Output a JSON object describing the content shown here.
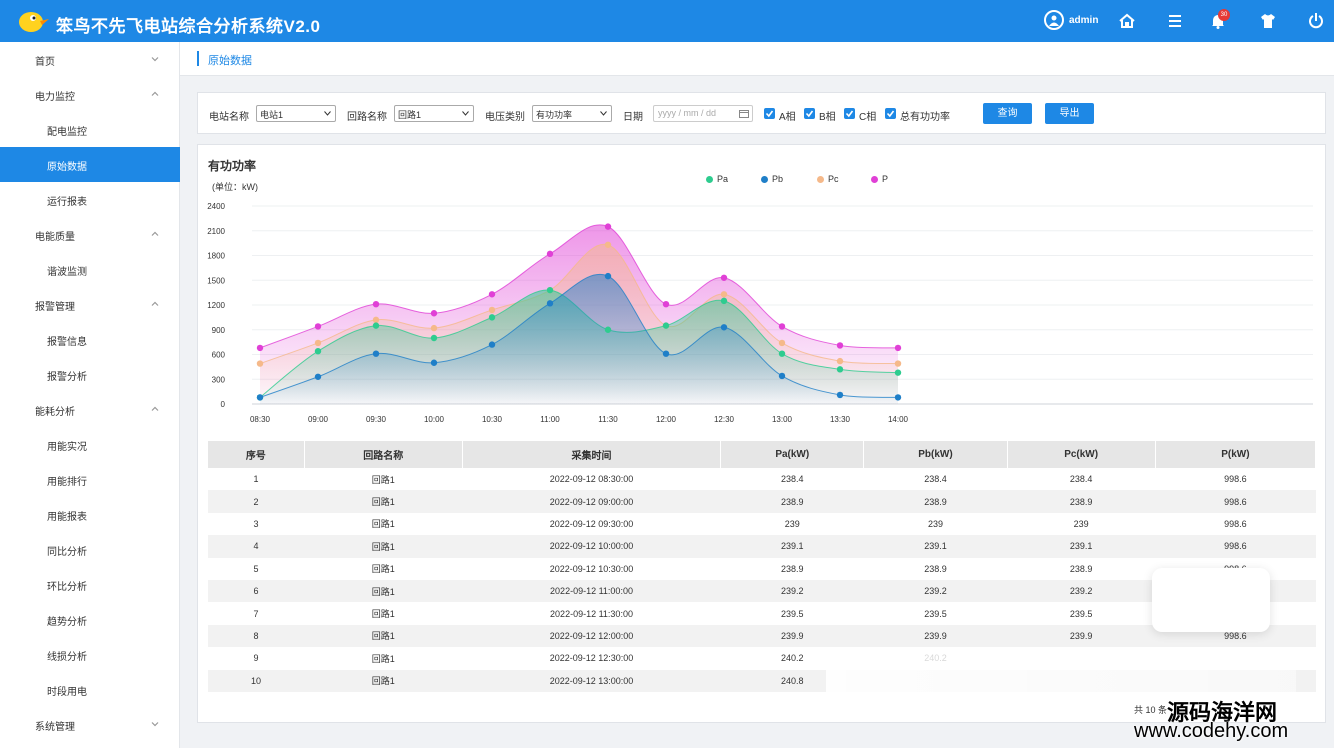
{
  "app": {
    "title": "笨鸟不先飞电站综合分析系统V2.0",
    "user": "admin",
    "notification_count": "30"
  },
  "sidebar": {
    "items": [
      {
        "label": "首页",
        "type": "group",
        "expanded": false
      },
      {
        "label": "电力监控",
        "type": "group",
        "expanded": true
      },
      {
        "label": "配电监控",
        "type": "sub"
      },
      {
        "label": "原始数据",
        "type": "sub",
        "active": true
      },
      {
        "label": "运行报表",
        "type": "sub"
      },
      {
        "label": "电能质量",
        "type": "group",
        "expanded": true
      },
      {
        "label": "谐波监测",
        "type": "sub"
      },
      {
        "label": "报警管理",
        "type": "group",
        "expanded": true
      },
      {
        "label": "报警信息",
        "type": "sub"
      },
      {
        "label": "报警分析",
        "type": "sub"
      },
      {
        "label": "能耗分析",
        "type": "group",
        "expanded": true
      },
      {
        "label": "用能实况",
        "type": "sub"
      },
      {
        "label": "用能排行",
        "type": "sub"
      },
      {
        "label": "用能报表",
        "type": "sub"
      },
      {
        "label": "同比分析",
        "type": "sub"
      },
      {
        "label": "环比分析",
        "type": "sub"
      },
      {
        "label": "趋势分析",
        "type": "sub"
      },
      {
        "label": "线损分析",
        "type": "sub"
      },
      {
        "label": "时段用电",
        "type": "sub"
      },
      {
        "label": "系统管理",
        "type": "group",
        "expanded": false
      }
    ]
  },
  "breadcrumb": {
    "title": "原始数据"
  },
  "filters": {
    "station_label": "电站名称",
    "station_value": "电站1",
    "circuit_label": "回路名称",
    "circuit_value": "回路1",
    "voltage_label": "电压类别",
    "voltage_value": "有功功率",
    "date_label": "日期",
    "date_placeholder": "yyyy / mm / dd",
    "checks": [
      {
        "label": "A相",
        "checked": true
      },
      {
        "label": "B相",
        "checked": true
      },
      {
        "label": "C相",
        "checked": true
      },
      {
        "label": "总有功功率",
        "checked": true
      }
    ],
    "query_label": "查询",
    "export_label": "导出"
  },
  "chart": {
    "title": "有功功率",
    "unit": "(单位：kW)",
    "colors": {
      "Pa": "#2ecc8f",
      "Pb": "#1f7fc8",
      "Pc": "#f5b98a",
      "P": "#e040d6"
    }
  },
  "chart_data": {
    "type": "area",
    "x": [
      "08:30",
      "09:00",
      "09:30",
      "10:00",
      "10:30",
      "11:00",
      "11:30",
      "12:00",
      "12:30",
      "13:00",
      "13:30",
      "14:00"
    ],
    "ylim": [
      0,
      2400
    ],
    "yticks": [
      0,
      300,
      600,
      900,
      1200,
      1500,
      1800,
      2100,
      2400
    ],
    "grid": true,
    "legend": "top",
    "series": [
      {
        "name": "Pa",
        "values": [
          80,
          640,
          950,
          800,
          1050,
          1380,
          900,
          950,
          1250,
          610,
          420,
          380
        ]
      },
      {
        "name": "Pb",
        "values": [
          80,
          330,
          610,
          500,
          720,
          1220,
          1550,
          610,
          930,
          340,
          110,
          80
        ]
      },
      {
        "name": "Pc",
        "values": [
          490,
          740,
          1020,
          920,
          1140,
          1380,
          1930,
          950,
          1330,
          740,
          520,
          490
        ]
      },
      {
        "name": "P",
        "values": [
          680,
          940,
          1210,
          1100,
          1330,
          1820,
          2150,
          1210,
          1530,
          940,
          710,
          680
        ]
      }
    ]
  },
  "table": {
    "headers": [
      "序号",
      "回路名称",
      "采集时间",
      "Pa(kW)",
      "Pb(kW)",
      "Pc(kW)",
      "P(kW)"
    ],
    "rows": [
      [
        "1",
        "回路1",
        "2022-09-12 08:30:00",
        "238.4",
        "238.4",
        "238.4",
        "998.6"
      ],
      [
        "2",
        "回路1",
        "2022-09-12 09:00:00",
        "238.9",
        "238.9",
        "238.9",
        "998.6"
      ],
      [
        "3",
        "回路1",
        "2022-09-12 09:30:00",
        "239",
        "239",
        "239",
        "998.6"
      ],
      [
        "4",
        "回路1",
        "2022-09-12 10:00:00",
        "239.1",
        "239.1",
        "239.1",
        "998.6"
      ],
      [
        "5",
        "回路1",
        "2022-09-12 10:30:00",
        "238.9",
        "238.9",
        "238.9",
        "998.6"
      ],
      [
        "6",
        "回路1",
        "2022-09-12 11:00:00",
        "239.2",
        "239.2",
        "239.2",
        ""
      ],
      [
        "7",
        "回路1",
        "2022-09-12 11:30:00",
        "239.5",
        "239.5",
        "239.5",
        ""
      ],
      [
        "8",
        "回路1",
        "2022-09-12 12:00:00",
        "239.9",
        "239.9",
        "239.9",
        "998.6"
      ],
      [
        "9",
        "回路1",
        "2022-09-12 12:30:00",
        "240.2",
        "240.2",
        "",
        ""
      ],
      [
        "10",
        "回路1",
        "2022-09-12 13:00:00",
        "240.8",
        "",
        "",
        ""
      ]
    ]
  },
  "pagination": {
    "summary": "共 10 条"
  },
  "watermark": {
    "line1": "源码海洋网",
    "line2": "www.codehy.com"
  }
}
